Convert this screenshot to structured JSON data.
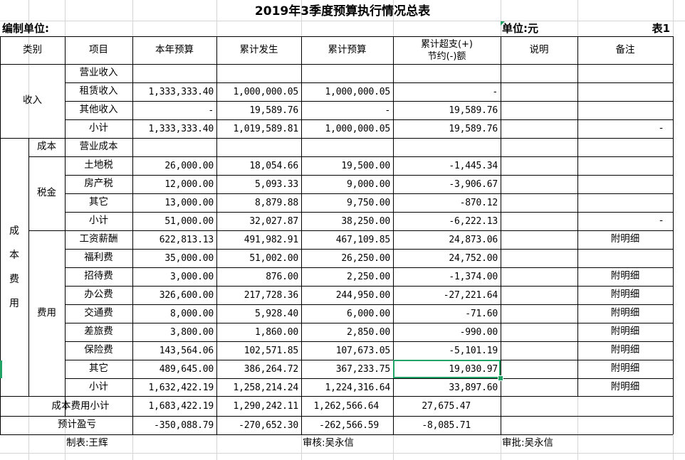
{
  "sheet": {
    "title": "2019年3季度预算执行情况总表",
    "unit_left": "编制单位:",
    "unit_right": "单位:元",
    "table_no": "表1"
  },
  "headers": {
    "category": "类别",
    "item": "项目",
    "annual_budget": "本年预算",
    "cumulative_actual": "累计发生",
    "cumulative_budget": "累计预算",
    "variance_line1": "累计超支(+)",
    "variance_line2": "节约(-)额",
    "explanation": "说明",
    "remark": "备注"
  },
  "groups": {
    "income": "收入",
    "cost_chars": [
      "成",
      "本",
      "费",
      "用"
    ],
    "cost": "成本",
    "tax": "税金",
    "expense": "费用",
    "cost_subtotal": "成本费用小计",
    "profit": "预计盈亏"
  },
  "rows": [
    {
      "item": "营业收入",
      "annual": "",
      "actual": "",
      "budget": "",
      "variance": "",
      "note": "",
      "remark": ""
    },
    {
      "item": "租赁收入",
      "annual": "1,333,333.40",
      "actual": "1,000,000.05",
      "budget": "1,000,000.05",
      "variance": "-",
      "note": "",
      "remark": ""
    },
    {
      "item": "其他收入",
      "annual": "-",
      "actual": "19,589.76",
      "budget": "-",
      "variance": "19,589.76",
      "note": "",
      "remark": ""
    },
    {
      "item": "小计",
      "annual": "1,333,333.40",
      "actual": "1,019,589.81",
      "budget": "1,000,000.05",
      "variance": "19,589.76",
      "note": "",
      "remark": "-"
    },
    {
      "item": "营业成本",
      "annual": "",
      "actual": "",
      "budget": "",
      "variance": "",
      "note": "",
      "remark": ""
    },
    {
      "item": "土地税",
      "annual": "26,000.00",
      "actual": "18,054.66",
      "budget": "19,500.00",
      "variance": "-1,445.34",
      "note": "",
      "remark": ""
    },
    {
      "item": "房产税",
      "annual": "12,000.00",
      "actual": "5,093.33",
      "budget": "9,000.00",
      "variance": "-3,906.67",
      "note": "",
      "remark": ""
    },
    {
      "item": "其它",
      "annual": "13,000.00",
      "actual": "8,879.88",
      "budget": "9,750.00",
      "variance": "-870.12",
      "note": "",
      "remark": ""
    },
    {
      "item": "小计",
      "annual": "51,000.00",
      "actual": "32,027.87",
      "budget": "38,250.00",
      "variance": "-6,222.13",
      "note": "",
      "remark": "-"
    },
    {
      "item": "工资薪酬",
      "annual": "622,813.13",
      "actual": "491,982.91",
      "budget": "467,109.85",
      "variance": "24,873.06",
      "note": "",
      "remark": "附明细"
    },
    {
      "item": "福利费",
      "annual": "35,000.00",
      "actual": "51,002.00",
      "budget": "26,250.00",
      "variance": "24,752.00",
      "note": "",
      "remark": ""
    },
    {
      "item": "招待费",
      "annual": "3,000.00",
      "actual": "876.00",
      "budget": "2,250.00",
      "variance": "-1,374.00",
      "note": "",
      "remark": "附明细"
    },
    {
      "item": "办公费",
      "annual": "326,600.00",
      "actual": "217,728.36",
      "budget": "244,950.00",
      "variance": "-27,221.64",
      "note": "",
      "remark": "附明细"
    },
    {
      "item": "交通费",
      "annual": "8,000.00",
      "actual": "5,928.40",
      "budget": "6,000.00",
      "variance": "-71.60",
      "note": "",
      "remark": "附明细"
    },
    {
      "item": "差旅费",
      "annual": "3,800.00",
      "actual": "1,860.00",
      "budget": "2,850.00",
      "variance": "-990.00",
      "note": "",
      "remark": "附明细"
    },
    {
      "item": "保险费",
      "annual": "143,564.06",
      "actual": "102,571.85",
      "budget": "107,673.05",
      "variance": "-5,101.19",
      "note": "",
      "remark": "附明细"
    },
    {
      "item": "其它",
      "annual": "489,645.00",
      "actual": "386,264.72",
      "budget": "367,233.75",
      "variance": "19,030.97",
      "note": "",
      "remark": "附明细"
    },
    {
      "item": "小计",
      "annual": "1,632,422.19",
      "actual": "1,258,214.24",
      "budget": "1,224,316.64",
      "variance": "33,897.60",
      "note": "",
      "remark": "附明细"
    }
  ],
  "summary": {
    "cost_subtotal": {
      "annual": "1,683,422.19",
      "actual": "1,290,242.11",
      "budget": "1,262,566.64",
      "variance": "27,675.47"
    },
    "profit": {
      "annual": "-350,088.79",
      "actual": "-270,652.30",
      "budget": "-262,566.59",
      "variance": "-8,085.71"
    }
  },
  "footer": {
    "prepared_by": "制表:王辉",
    "reviewed_by": "审核:吴永信",
    "approved_by": "审批:吴永信"
  },
  "selection": {
    "cell": "其它 / 累计超支(+)节约(-)额",
    "accent": "#21a366"
  }
}
